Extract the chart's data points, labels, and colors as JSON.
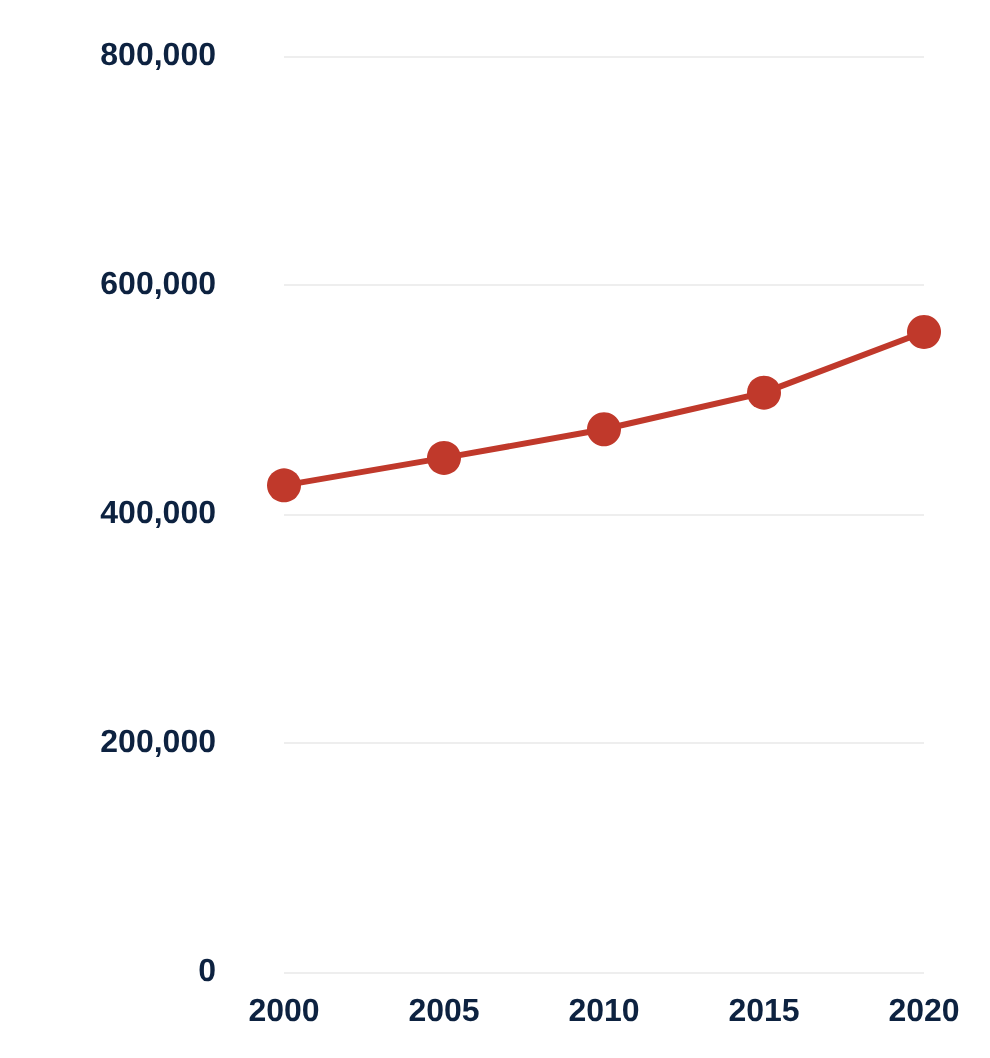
{
  "chart_data": {
    "type": "line",
    "categories": [
      "2000",
      "2005",
      "2010",
      "2015",
      "2020"
    ],
    "series": [
      {
        "color": "#c0392b",
        "values": [
          425000,
          449000,
          474000,
          506000,
          559000
        ]
      }
    ],
    "ylim": [
      0,
      800000
    ],
    "yticks": [
      0,
      {
        "value": 200000,
        "label": "200,000"
      },
      {
        "value": 400000,
        "label": "400,000"
      },
      {
        "value": 600000,
        "label": "600,000"
      },
      {
        "value": 800000,
        "label": "800,000"
      }
    ],
    "grid": "y",
    "marker": "circle",
    "line_style": "solid"
  }
}
